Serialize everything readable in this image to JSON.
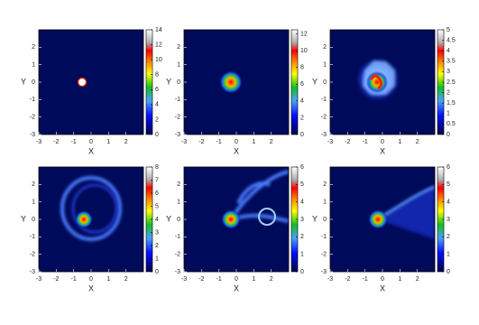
{
  "chart_data": [
    {
      "type": "heatmap",
      "xlabel": "X",
      "ylabel": "Y",
      "xlim": [
        -3,
        3
      ],
      "ylim": [
        -3,
        3
      ],
      "xticks": [
        -3,
        -2,
        -1,
        0,
        1,
        2
      ],
      "yticks": [
        -3,
        -2,
        -1,
        0,
        1,
        2
      ],
      "clim": [
        0,
        14
      ],
      "cticks": [
        0,
        2,
        4,
        6,
        8,
        10,
        12,
        14
      ]
    },
    {
      "type": "heatmap",
      "xlabel": "X",
      "ylabel": "Y",
      "xlim": [
        -3,
        3
      ],
      "ylim": [
        -3,
        3
      ],
      "xticks": [
        -3,
        -2,
        -1,
        0,
        1,
        2
      ],
      "yticks": [
        -3,
        -2,
        -1,
        0,
        1,
        2
      ],
      "clim": [
        0,
        12.5
      ],
      "cticks": [
        0,
        2,
        4,
        6,
        8,
        10,
        12
      ]
    },
    {
      "type": "heatmap",
      "xlabel": "X",
      "ylabel": "Y",
      "xlim": [
        -3,
        3
      ],
      "ylim": [
        -3,
        3
      ],
      "xticks": [
        -3,
        -2,
        -1,
        0,
        1,
        2
      ],
      "yticks": [
        -3,
        -2,
        -1,
        0,
        1,
        2
      ],
      "clim": [
        0,
        5
      ],
      "cticks": [
        0,
        0.5,
        1,
        1.5,
        2,
        2.5,
        3,
        3.5,
        4,
        4.5,
        5
      ]
    },
    {
      "type": "heatmap",
      "xlabel": "X",
      "ylabel": "Y",
      "xlim": [
        -3,
        3
      ],
      "ylim": [
        -3,
        3
      ],
      "xticks": [
        -3,
        -2,
        -1,
        0,
        1,
        2
      ],
      "yticks": [
        -3,
        -2,
        -1,
        0,
        1,
        2
      ],
      "clim": [
        0,
        8
      ],
      "cticks": [
        0,
        1,
        2,
        3,
        4,
        5,
        6,
        7,
        8
      ]
    },
    {
      "type": "heatmap",
      "xlabel": "X",
      "ylabel": "Y",
      "xlim": [
        -3,
        3
      ],
      "ylim": [
        -3,
        3
      ],
      "xticks": [
        -3,
        -2,
        -1,
        0,
        1,
        2
      ],
      "yticks": [
        -3,
        -2,
        -1,
        0,
        1,
        2
      ],
      "clim": [
        0,
        6
      ],
      "cticks": [
        0,
        1,
        2,
        3,
        4,
        5,
        6
      ]
    },
    {
      "type": "heatmap",
      "xlabel": "X",
      "ylabel": "Y",
      "xlim": [
        -3,
        3
      ],
      "ylim": [
        -3,
        3
      ],
      "xticks": [
        -3,
        -2,
        -1,
        0,
        1,
        2
      ],
      "yticks": [
        -3,
        -2,
        -1,
        0,
        1,
        2
      ],
      "clim": [
        0,
        6
      ],
      "cticks": [
        0,
        1,
        2,
        3,
        4,
        5,
        6
      ]
    }
  ]
}
